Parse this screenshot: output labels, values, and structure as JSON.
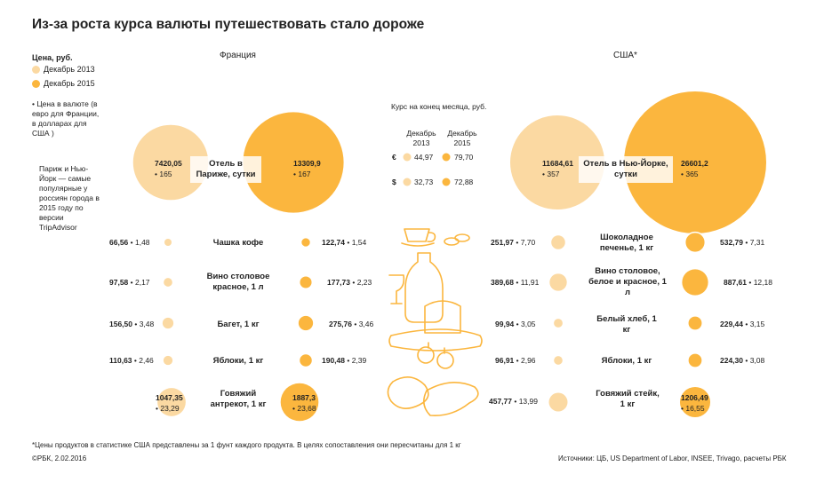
{
  "title": "Из-за роста курса валюты путешествовать стало дороже",
  "legend": {
    "heading": "Цена, руб.",
    "items": [
      {
        "label": "Декабрь 2013",
        "color": "#fbd9a2"
      },
      {
        "label": "Декабрь 2015",
        "color": "#fbb63e"
      }
    ],
    "currency_note": "• Цена в валюте (в евро для Франции, в долларах для США )",
    "side_note": "Париж и Нью-Йорк — самые популярные у россиян города в 2015 году по версии TripAdvisor"
  },
  "columns": {
    "france": "Франция",
    "usa": "США*"
  },
  "rates": {
    "heading": "Курс на конец месяца, руб.",
    "col1": "Декабрь 2013",
    "col2": "Декабрь 2015",
    "rows": [
      {
        "symbol": "€",
        "v2013": "44,97",
        "v2015": "79,70"
      },
      {
        "symbol": "$",
        "v2013": "32,73",
        "v2015": "72,88"
      }
    ]
  },
  "chart_data": {
    "type": "bubble",
    "title": "Из-за роста курса валюты путешествовать стало дороже",
    "size_metric": "Цена, руб.",
    "france": [
      {
        "item": "Отель в Париже, сутки",
        "rub_2013": "7420,05",
        "cur_2013": "165",
        "rub_2015": "13309,9",
        "cur_2015": "167",
        "r13": 7420.05,
        "r15": 13309.9
      },
      {
        "item": "Чашка кофе",
        "rub_2013": "66,56",
        "cur_2013": "1,48",
        "rub_2015": "122,74",
        "cur_2015": "1,54",
        "r13": 66.56,
        "r15": 122.74
      },
      {
        "item": "Вино столовое красное, 1 л",
        "rub_2013": "97,58",
        "cur_2013": "2,17",
        "rub_2015": "177,73",
        "cur_2015": "2,23",
        "r13": 97.58,
        "r15": 177.73
      },
      {
        "item": "Багет, 1 кг",
        "rub_2013": "156,50",
        "cur_2013": "3,48",
        "rub_2015": "275,76",
        "cur_2015": "3,46",
        "r13": 156.5,
        "r15": 275.76
      },
      {
        "item": "Яблоки, 1 кг",
        "rub_2013": "110,63",
        "cur_2013": "2,46",
        "rub_2015": "190,48",
        "cur_2015": "2,39",
        "r13": 110.63,
        "r15": 190.48
      },
      {
        "item": "Говяжий антрекот, 1 кг",
        "rub_2013": "1047,35",
        "cur_2013": "23,29",
        "rub_2015": "1887,3",
        "cur_2015": "23,68",
        "r13": 1047.35,
        "r15": 1887.3
      }
    ],
    "usa": [
      {
        "item": "Отель в Нью-Йорке, сутки",
        "rub_2013": "11684,61",
        "cur_2013": "357",
        "rub_2015": "26601,2",
        "cur_2015": "365",
        "r13": 11684.61,
        "r15": 26601.2
      },
      {
        "item": "Шоколадное печенье, 1 кг",
        "rub_2013": "251,97",
        "cur_2013": "7,70",
        "rub_2015": "532,79",
        "cur_2015": "7,31",
        "r13": 251.97,
        "r15": 532.79
      },
      {
        "item": "Вино столовое, белое и красное, 1 л",
        "rub_2013": "389,68",
        "cur_2013": "11,91",
        "rub_2015": "887,61",
        "cur_2015": "12,18",
        "r13": 389.68,
        "r15": 887.61
      },
      {
        "item": "Белый хлеб, 1 кг",
        "rub_2013": "99,94",
        "cur_2013": "3,05",
        "rub_2015": "229,44",
        "cur_2015": "3,15",
        "r13": 99.94,
        "r15": 229.44
      },
      {
        "item": "Яблоки, 1 кг",
        "rub_2013": "96,91",
        "cur_2013": "2,96",
        "rub_2015": "224,30",
        "cur_2015": "3,08",
        "r13": 96.91,
        "r15": 224.3
      },
      {
        "item": "Говяжий стейк, 1 кг",
        "rub_2013": "457,77",
        "cur_2013": "13,99",
        "rub_2015": "1206,49",
        "cur_2015": "16,55",
        "r13": 457.77,
        "r15": 1206.49
      }
    ]
  },
  "footer": {
    "note": "*Цены продуктов в статистике США представлены за 1 фунт каждого продукта. В целях сопоставления они пересчитаны для 1 кг",
    "copyright": "©РБК, 2.02.2016",
    "sources": "Источники: ЦБ, US Department of Labor, INSEE, Trivago, расчеты РБК"
  }
}
